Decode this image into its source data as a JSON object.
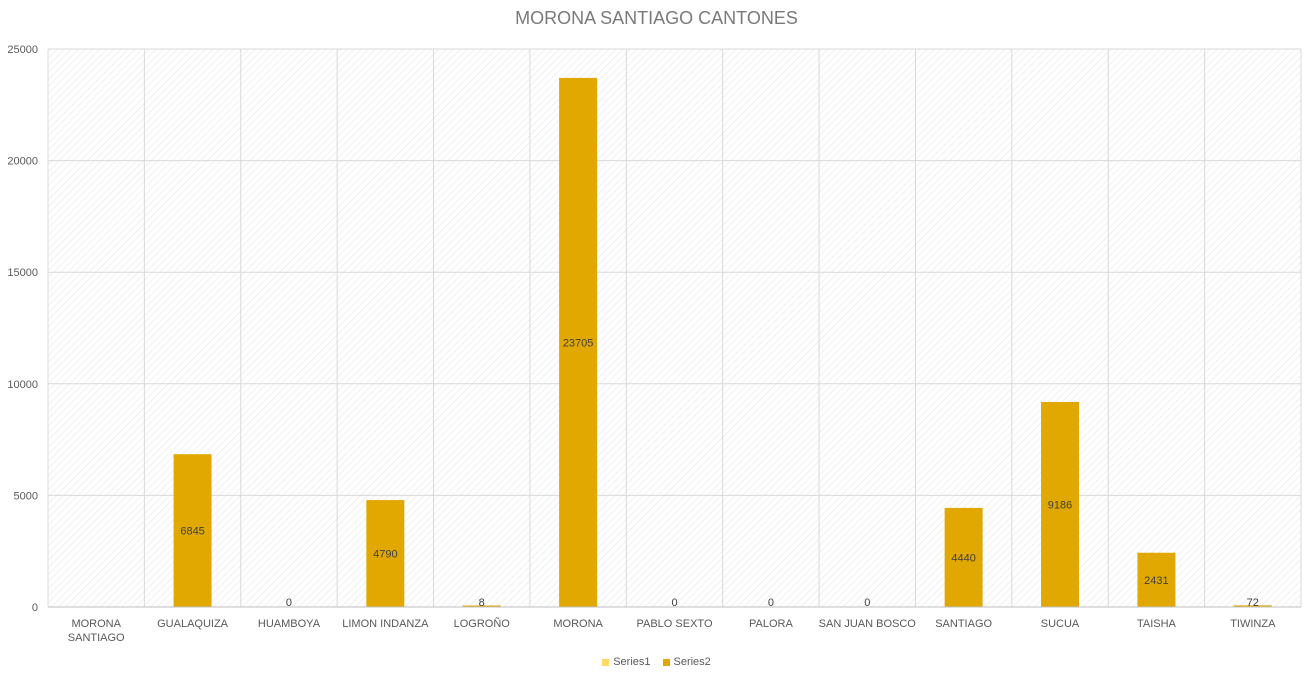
{
  "chart_data": {
    "type": "bar",
    "title": "MORONA SANTIAGO CANTONES",
    "xlabel": "",
    "ylabel": "",
    "ylim": [
      0,
      25000
    ],
    "yticks": [
      "0",
      "5000",
      "10000",
      "15000",
      "20000",
      "25000"
    ],
    "grid": true,
    "legend_position": "bottom",
    "categories": [
      "MORONA SANTIAGO",
      "GUALAQUIZA",
      "HUAMBOYA",
      "LIMON INDANZA",
      "LOGROÑO",
      "MORONA",
      "PABLO SEXTO",
      "PALORA",
      "SAN JUAN BOSCO",
      "SANTIAGO",
      "SUCUA",
      "TAISHA",
      "TIWINZA"
    ],
    "series": [
      {
        "name": "Series1",
        "color": "#ffd966",
        "values": [
          null,
          null,
          null,
          null,
          null,
          null,
          null,
          null,
          null,
          null,
          null,
          null,
          null
        ],
        "labels": [
          "",
          "",
          "",
          "",
          "",
          "",
          "",
          "",
          "",
          "",
          "",
          "",
          ""
        ]
      },
      {
        "name": "Series2",
        "color": "#e0a800",
        "values": [
          null,
          6845,
          0,
          4790,
          8,
          23705,
          0,
          0,
          0,
          4440,
          9186,
          2431,
          72
        ],
        "labels": [
          "",
          "6845",
          "0",
          "4790",
          "8",
          "23705",
          "0",
          "0",
          "0",
          "4440",
          "9186",
          "2431",
          "72"
        ]
      }
    ]
  }
}
